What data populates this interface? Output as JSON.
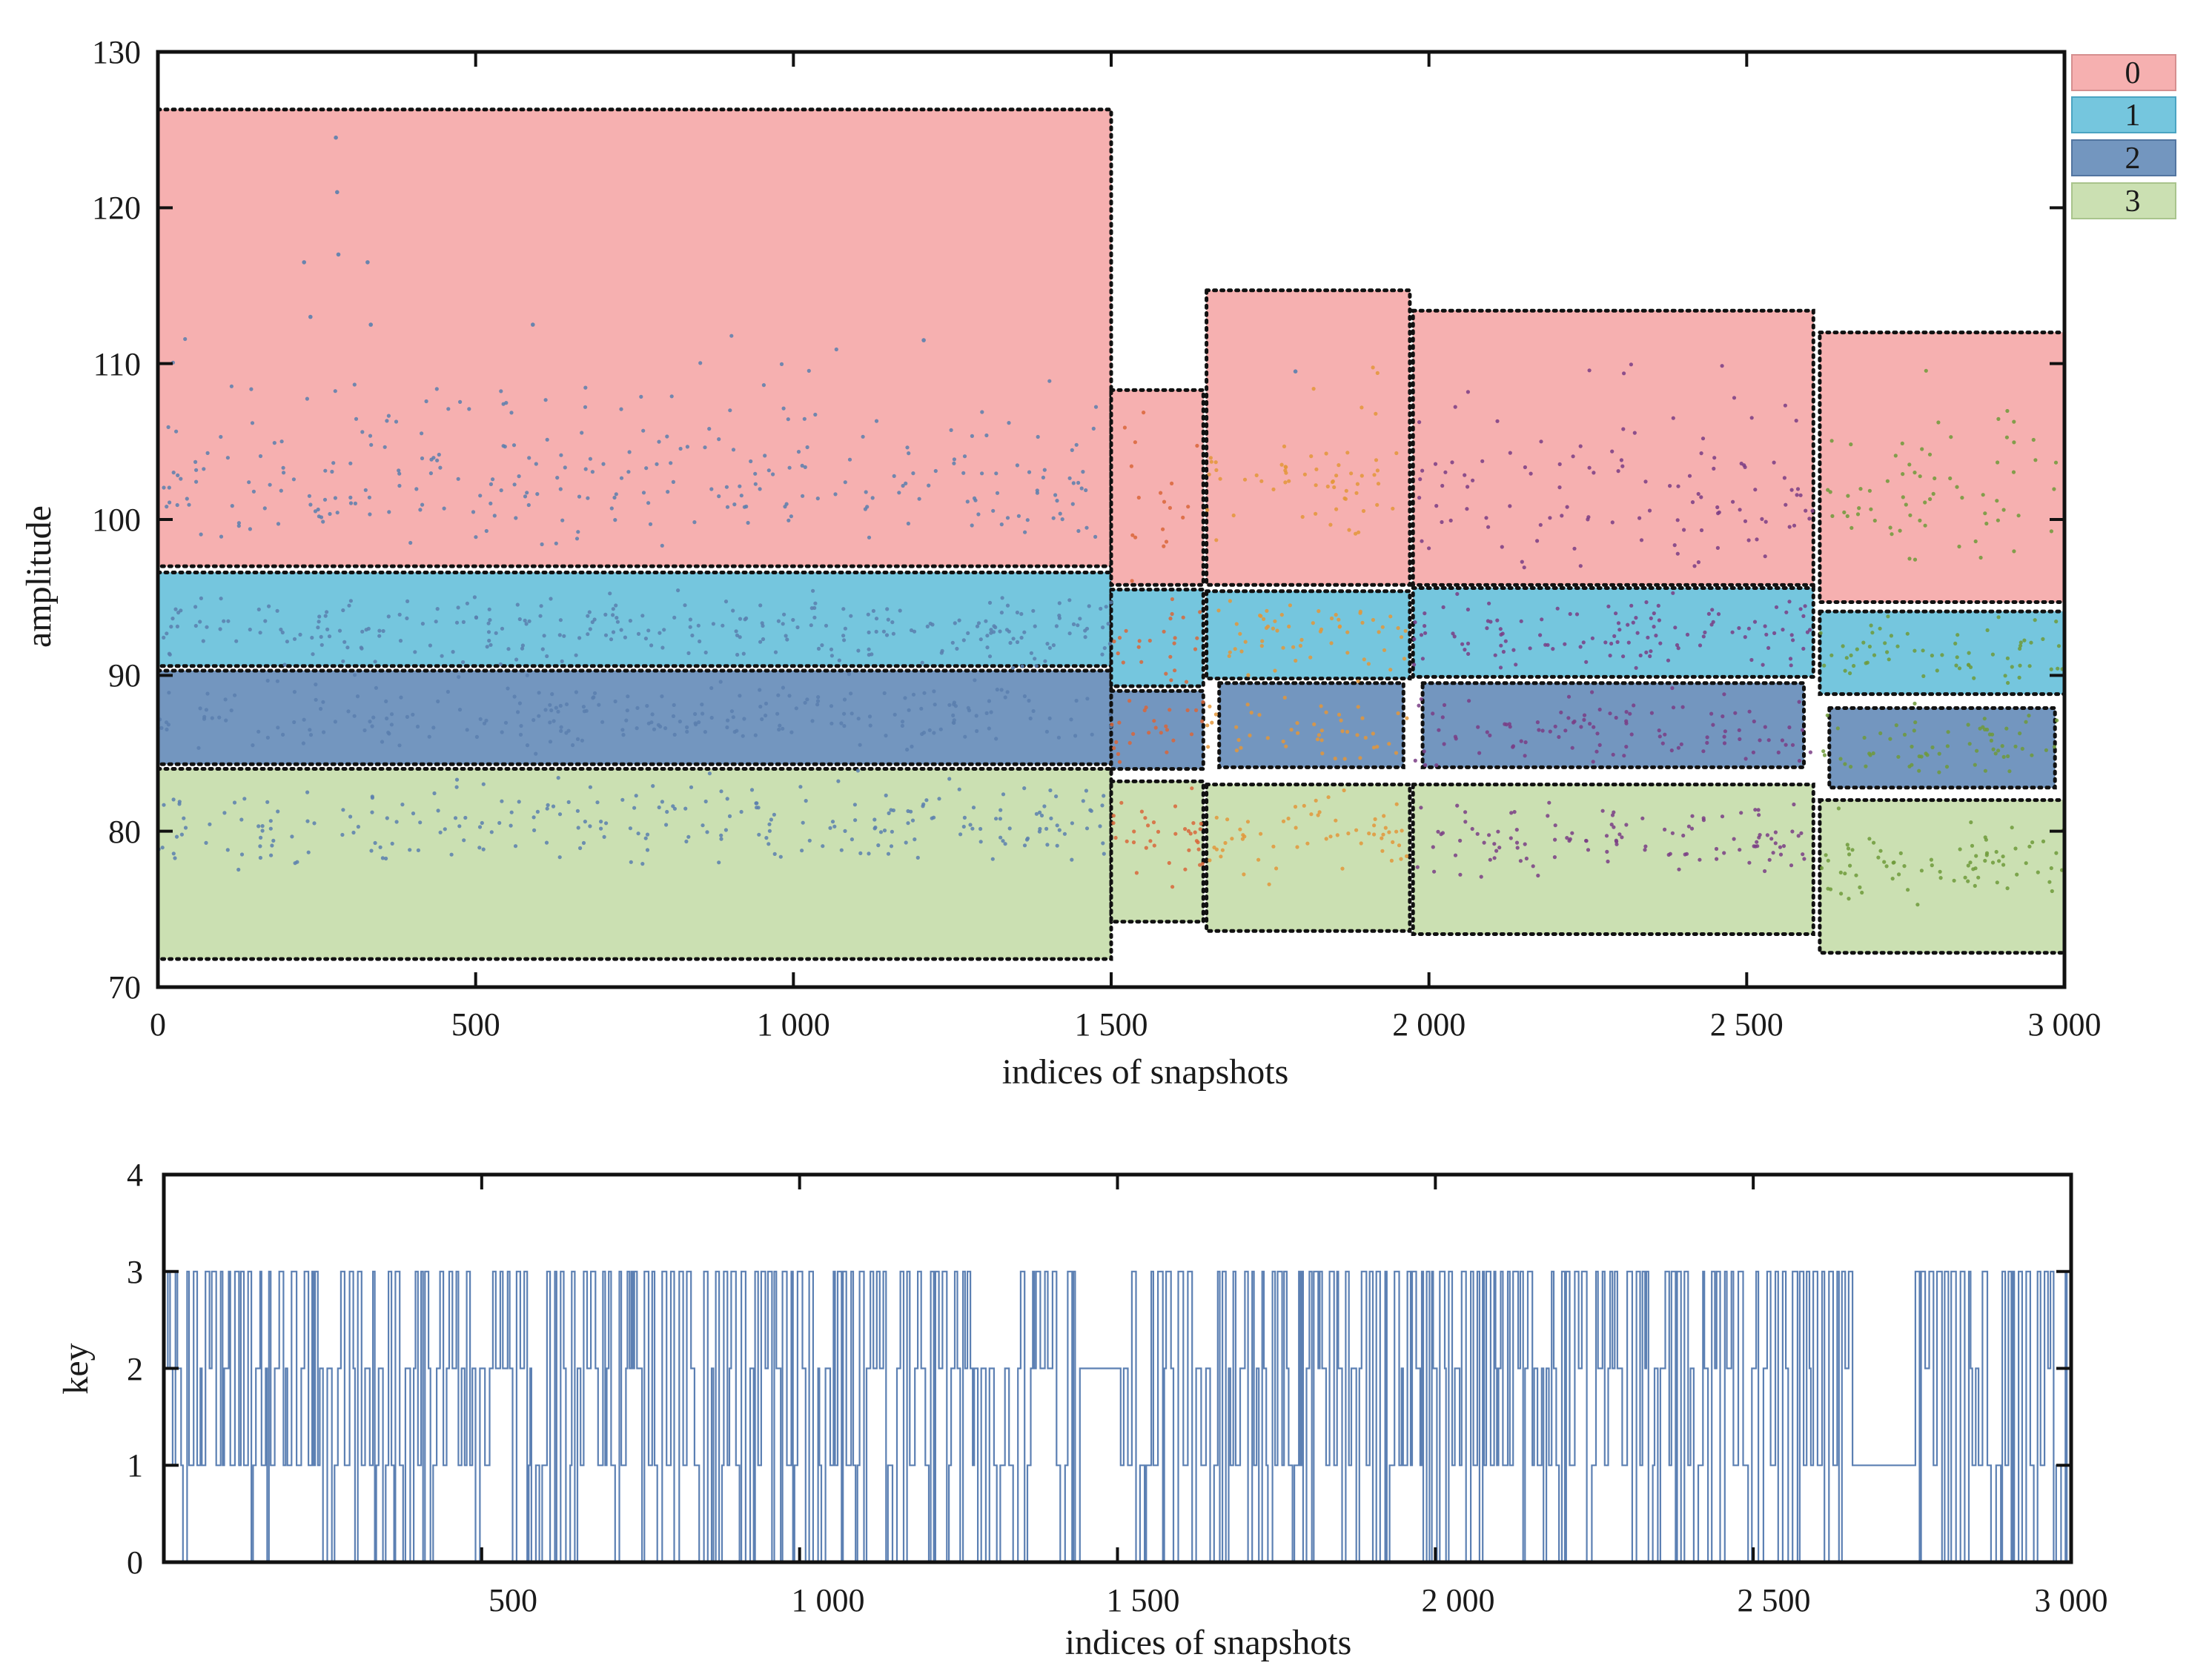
{
  "figure": {
    "panels": [
      {
        "id": "amplitude-panel",
        "xlabel": "indices of snapshots",
        "ylabel": "amplitude",
        "x_ticks": [
          "0",
          "500",
          "1 000",
          "1 500",
          "2 000",
          "2 500",
          "3 000"
        ],
        "y_ticks": [
          "70",
          "80",
          "90",
          "100",
          "110",
          "120",
          "130"
        ]
      },
      {
        "id": "key-panel",
        "xlabel": "indices of snapshots",
        "ylabel": "key",
        "x_ticks": [
          "500",
          "1 000",
          "1 500",
          "2 000",
          "2 500",
          "3 000"
        ],
        "y_ticks": [
          "0",
          "1",
          "2",
          "3",
          "4"
        ]
      }
    ],
    "legend": [
      "0",
      "1",
      "2",
      "3"
    ]
  },
  "chart_data": [
    {
      "type": "scatter",
      "xlabel": "indices of snapshots",
      "ylabel": "amplitude",
      "xlim": [
        0,
        3000
      ],
      "ylim": [
        70,
        130
      ],
      "x_ticks": [
        0,
        500,
        1000,
        1500,
        2000,
        2500,
        3000
      ],
      "y_ticks": [
        70,
        80,
        90,
        100,
        110,
        120,
        130
      ],
      "legend": [
        "0",
        "1",
        "2",
        "3"
      ],
      "legend_position": "right, outside top",
      "class_colors": {
        "0": "#f6b0b0",
        "1": "#75c6de",
        "2": "#7396bf",
        "3": "#cbe0b2"
      },
      "regions": [
        {
          "class": "0",
          "x": [
            0,
            1500
          ],
          "y": [
            97,
            126.3
          ]
        },
        {
          "class": "1",
          "x": [
            0,
            1500
          ],
          "y": [
            90.6,
            96.6
          ]
        },
        {
          "class": "2",
          "x": [
            0,
            1500
          ],
          "y": [
            84.3,
            90.3
          ]
        },
        {
          "class": "3",
          "x": [
            0,
            1500
          ],
          "y": [
            71.8,
            84
          ]
        },
        {
          "class": "0",
          "x": [
            1500,
            1645
          ],
          "y": [
            95.8,
            108.3
          ]
        },
        {
          "class": "1",
          "x": [
            1500,
            1645
          ],
          "y": [
            89.3,
            95.5
          ]
        },
        {
          "class": "2",
          "x": [
            1500,
            1645
          ],
          "y": [
            84,
            89
          ]
        },
        {
          "class": "3",
          "x": [
            1500,
            1645
          ],
          "y": [
            74.2,
            83.2
          ]
        },
        {
          "class": "0",
          "x": [
            1650,
            1970
          ],
          "y": [
            95.8,
            114.7
          ]
        },
        {
          "class": "1",
          "x": [
            1650,
            1970
          ],
          "y": [
            89.8,
            95.4
          ]
        },
        {
          "class": "2",
          "x": [
            1670,
            1960
          ],
          "y": [
            84.1,
            89.5
          ]
        },
        {
          "class": "3",
          "x": [
            1650,
            1970
          ],
          "y": [
            73.6,
            83
          ]
        },
        {
          "class": "0",
          "x": [
            1975,
            2605
          ],
          "y": [
            95.8,
            113.4
          ]
        },
        {
          "class": "1",
          "x": [
            1975,
            2605
          ],
          "y": [
            89.9,
            95.6
          ]
        },
        {
          "class": "2",
          "x": [
            1990,
            2590
          ],
          "y": [
            84.1,
            89.5
          ]
        },
        {
          "class": "3",
          "x": [
            1975,
            2605
          ],
          "y": [
            73.4,
            83
          ]
        },
        {
          "class": "0",
          "x": [
            2615,
            3000
          ],
          "y": [
            94.7,
            112
          ]
        },
        {
          "class": "1",
          "x": [
            2615,
            3000
          ],
          "y": [
            88.8,
            94.1
          ]
        },
        {
          "class": "2",
          "x": [
            2630,
            2985
          ],
          "y": [
            82.8,
            87.9
          ]
        },
        {
          "class": "3",
          "x": [
            2615,
            3000
          ],
          "y": [
            72.2,
            82
          ]
        }
      ],
      "point_segments": [
        {
          "x": [
            0,
            1500
          ],
          "color": "#5a7fae",
          "band_centers": [
            102,
            93,
            87.5,
            80.5
          ]
        },
        {
          "x": [
            1500,
            1645
          ],
          "color": "#d9663a",
          "band_centers": [
            101,
            92.5,
            86.5,
            80
          ]
        },
        {
          "x": [
            1650,
            1970
          ],
          "color": "#e3963a",
          "band_centers": [
            102,
            92.5,
            86.5,
            79.5
          ]
        },
        {
          "x": [
            1975,
            2605
          ],
          "color": "#7a3d85",
          "band_centers": [
            101,
            92.5,
            86.5,
            79.5
          ]
        },
        {
          "x": [
            2615,
            3000
          ],
          "color": "#6f9a3a",
          "band_centers": [
            101,
            91.5,
            85.5,
            78
          ]
        }
      ],
      "peaks": [
        [
          230,
          116.5
        ],
        [
          240,
          113
        ],
        [
          280,
          124.5
        ],
        [
          282,
          121
        ],
        [
          284,
          117
        ],
        [
          330,
          116.5
        ],
        [
          335,
          112.5
        ],
        [
          590,
          112.5
        ],
        [
          1205,
          111.5
        ],
        [
          1790,
          109.5
        ]
      ]
    },
    {
      "type": "line",
      "xlabel": "indices of snapshots",
      "ylabel": "key",
      "xlim": [
        0,
        3000
      ],
      "ylim": [
        0,
        4
      ],
      "x_ticks": [
        500,
        1000,
        1500,
        2000,
        2500,
        3000
      ],
      "y_ticks": [
        0,
        1,
        2,
        3,
        4
      ],
      "line_color": "#3f6aa6",
      "values_description_levels": [
        0,
        1,
        2,
        3
      ],
      "plateaus": [
        {
          "x": [
            1435,
            1505
          ],
          "value": 2
        },
        {
          "x": [
            2655,
            2755
          ],
          "value": 1
        }
      ]
    }
  ]
}
